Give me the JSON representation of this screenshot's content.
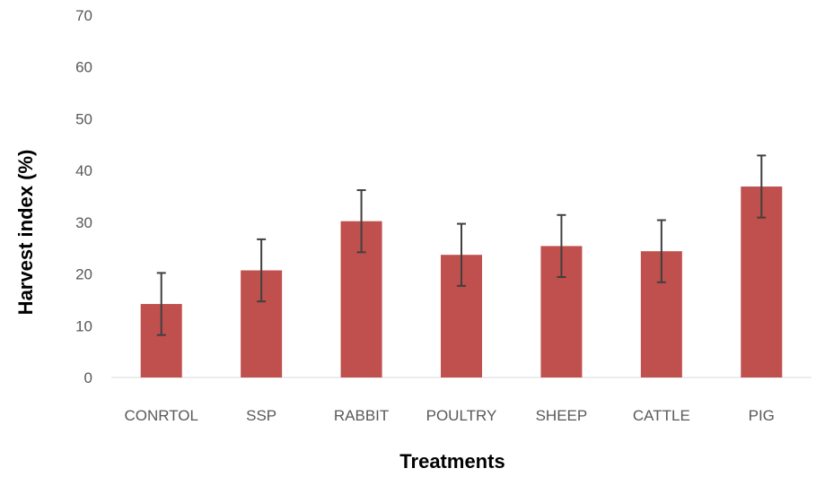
{
  "chart_data": {
    "type": "bar",
    "title": "",
    "xlabel": "Treatments",
    "ylabel": "Harvest index (%)",
    "categories": [
      "CONRTOL",
      "SSP",
      "RABBIT",
      "POULTRY",
      "SHEEP",
      "CATTLE",
      "PIG"
    ],
    "series": [
      {
        "values": [
          14.2,
          20.7,
          30.2,
          23.7,
          25.4,
          24.4,
          36.9
        ],
        "error": [
          6.0,
          6.0,
          6.0,
          6.0,
          6.0,
          6.0,
          6.0
        ]
      }
    ],
    "ylim": [
      0,
      70
    ],
    "yticks": [
      0,
      10,
      20,
      30,
      40,
      50,
      60,
      70
    ],
    "grid": false,
    "legend": "none",
    "colors": {
      "bar": "#c0504d",
      "error_bar": "#404040",
      "axis": "#d9d9d9"
    }
  }
}
